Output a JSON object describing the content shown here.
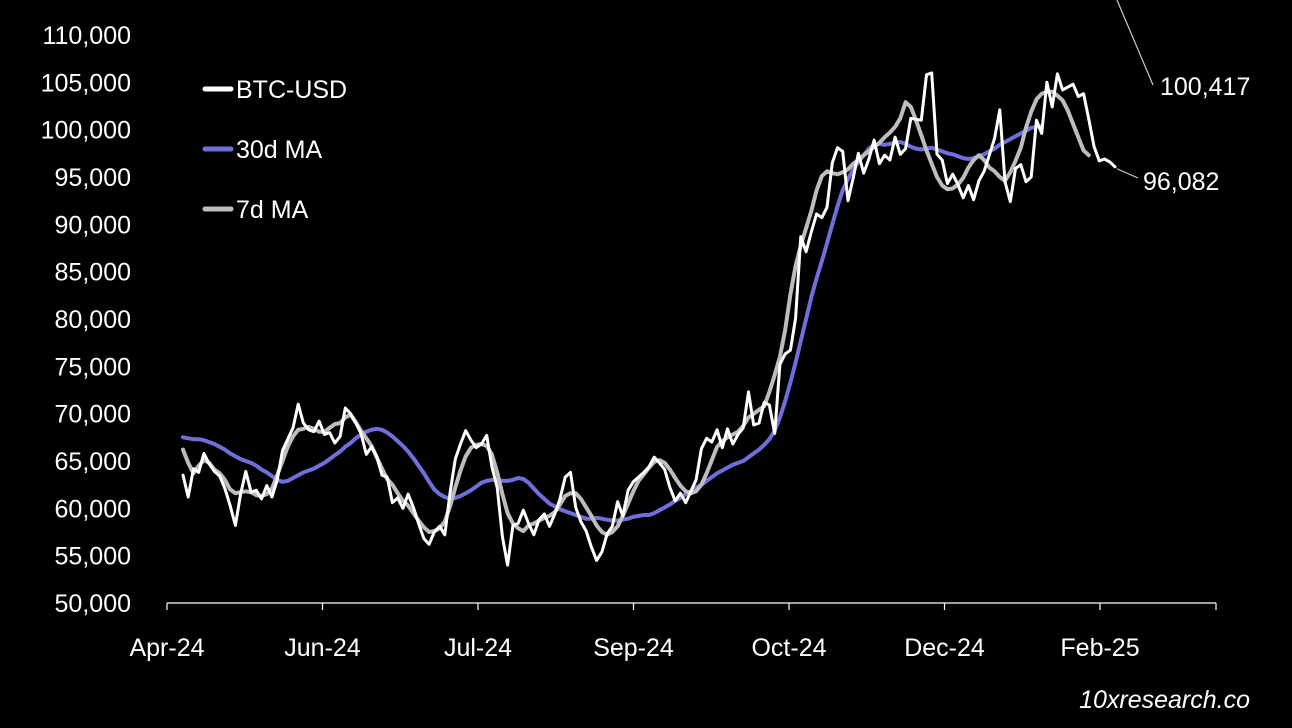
{
  "chart_data": {
    "type": "line",
    "title": "",
    "xlabel": "",
    "ylabel": "",
    "ylim": [
      50000,
      110000
    ],
    "y_ticks": [
      "110,000",
      "105,000",
      "100,000",
      "95,000",
      "90,000",
      "85,000",
      "80,000",
      "75,000",
      "70,000",
      "65,000",
      "60,000",
      "55,000",
      "50,000"
    ],
    "x_ticks": [
      "Apr-24",
      "Jun-24",
      "Jul-24",
      "Sep-24",
      "Oct-24",
      "Dec-24",
      "Feb-25"
    ],
    "grid": false,
    "legend_position": "top-left",
    "colors": {
      "background": "#000000",
      "btc": "#ffffff",
      "ma30": "#6f6fdc",
      "ma7": "#bdbdbd",
      "axis": "#ffffff"
    },
    "annotations": [
      {
        "text": "100,417",
        "series": "30d MA"
      },
      {
        "text": "96,082",
        "series": "BTC-USD"
      }
    ],
    "watermark": "10xresearch.co",
    "series": [
      {
        "name": "BTC-USD",
        "key": "btc",
        "values": [
          63500,
          61200,
          64200,
          63800,
          65800,
          64700,
          63900,
          63400,
          62100,
          60300,
          58200,
          61500,
          63900,
          61700,
          61900,
          61000,
          62400,
          61200,
          63000,
          66100,
          67300,
          68500,
          71000,
          69000,
          68300,
          68100,
          69200,
          67800,
          68000,
          66900,
          67600,
          70600,
          70000,
          69000,
          67900,
          65700,
          66500,
          65500,
          63500,
          63300,
          60600,
          61100,
          60000,
          61500,
          60100,
          58400,
          56800,
          56200,
          57500,
          58100,
          57200,
          61600,
          65200,
          66800,
          68200,
          67200,
          66400,
          66800,
          67700,
          64400,
          62200,
          57000,
          54000,
          58200,
          58400,
          59800,
          58400,
          57200,
          58800,
          59400,
          58100,
          59400,
          61000,
          63300,
          63800,
          60100,
          58600,
          57600,
          55900,
          54500,
          55400,
          57300,
          58100,
          60700,
          59200,
          61900,
          62800,
          63300,
          63800,
          64400,
          65400,
          64800,
          64100,
          62200,
          60800,
          61600,
          60600,
          61800,
          63000,
          66300,
          67400,
          67000,
          68300,
          66400,
          68400,
          66800,
          67800,
          68500,
          72300,
          68800,
          69000,
          71200,
          70900,
          67900,
          75200,
          76300,
          76700,
          80100,
          88700,
          87100,
          89200,
          91100,
          90700,
          91800,
          96500,
          98100,
          97700,
          92500,
          94900,
          97500,
          95400,
          96900,
          98900,
          96400,
          97300,
          96800,
          99200,
          97400,
          98000,
          101200,
          101100,
          101000,
          105800,
          106000,
          97400,
          96800,
          94300,
          95300,
          94200,
          92800,
          94100,
          92600,
          94600,
          95600,
          97300,
          99100,
          102100,
          94500,
          92400,
          95900,
          96300,
          94500,
          95000,
          101000,
          99600,
          105000,
          102400,
          105900,
          104200,
          104500,
          104800,
          103500,
          103800,
          101100,
          98200,
          96700,
          96900,
          96600,
          96082
        ]
      },
      {
        "name": "7d MA",
        "key": "ma7",
        "values": [
          66200,
          64800,
          63700,
          64500,
          65100,
          64800,
          64100,
          63700,
          63000,
          62000,
          61600,
          61700,
          61800,
          61700,
          61400,
          61300,
          61500,
          62100,
          63500,
          65000,
          66500,
          67600,
          68300,
          68400,
          68600,
          68400,
          68100,
          68100,
          68500,
          68900,
          69000,
          69600,
          69900,
          69100,
          68200,
          67400,
          66600,
          65400,
          64200,
          63100,
          62500,
          61600,
          60800,
          60300,
          59500,
          58700,
          58000,
          57500,
          57600,
          57900,
          58600,
          60200,
          62200,
          64000,
          65500,
          66400,
          66700,
          66800,
          66600,
          65700,
          63800,
          61500,
          59500,
          58400,
          57900,
          57600,
          58200,
          58400,
          58700,
          59000,
          59200,
          59600,
          60400,
          61300,
          61600,
          61600,
          61000,
          60100,
          59200,
          58200,
          57500,
          57200,
          57500,
          58100,
          59200,
          60500,
          61800,
          62900,
          63600,
          64300,
          64900,
          65100,
          64800,
          64100,
          63200,
          62400,
          61800,
          61600,
          61800,
          62500,
          63700,
          65100,
          66500,
          67100,
          67500,
          67800,
          68100,
          68700,
          69600,
          70000,
          70400,
          70800,
          72300,
          74100,
          76000,
          78800,
          82600,
          85600,
          87800,
          89600,
          91400,
          93600,
          95100,
          95600,
          95400,
          95300,
          95500,
          95800,
          96400,
          96800,
          97300,
          97700,
          98200,
          98600,
          99200,
          99700,
          100300,
          101200,
          102900,
          102400,
          101000,
          99400,
          97800,
          96400,
          95000,
          94100,
          93700,
          93800,
          94200,
          94900,
          96000,
          96800,
          97300,
          96800,
          96000,
          95600,
          95000,
          94600,
          95500,
          96700,
          98100,
          100200,
          101900,
          103200,
          103800,
          104000,
          104000,
          103600,
          103100,
          102000,
          100600,
          99200,
          97800,
          97300
        ]
      },
      {
        "name": "30d MA",
        "key": "ma30",
        "values": [
          67500,
          67400,
          67300,
          67300,
          67200,
          67000,
          66800,
          66500,
          66200,
          65800,
          65500,
          65200,
          65000,
          64800,
          64500,
          64100,
          63800,
          63400,
          63000,
          62800,
          62900,
          63200,
          63500,
          63800,
          64000,
          64200,
          64500,
          64800,
          65200,
          65600,
          66000,
          66500,
          66900,
          67400,
          67800,
          68100,
          68300,
          68400,
          68300,
          68000,
          67600,
          67100,
          66600,
          66000,
          65300,
          64500,
          63700,
          62800,
          62000,
          61500,
          61200,
          61000,
          61100,
          61300,
          61600,
          61900,
          62300,
          62700,
          62900,
          63000,
          63000,
          62900,
          62900,
          63000,
          63200,
          63100,
          62700,
          62100,
          61500,
          61000,
          60500,
          60200,
          59900,
          59700,
          59500,
          59300,
          59100,
          58900,
          58900,
          59000,
          58900,
          58800,
          58700,
          58700,
          58800,
          58900,
          59100,
          59200,
          59300,
          59300,
          59500,
          59800,
          60100,
          60400,
          60800,
          61100,
          61500,
          61800,
          62200,
          62500,
          62900,
          63300,
          63700,
          64000,
          64300,
          64600,
          64800,
          65000,
          65400,
          65800,
          66200,
          66700,
          67300,
          68200,
          69600,
          71300,
          73300,
          75400,
          77700,
          80000,
          82300,
          84300,
          86100,
          88000,
          90000,
          91900,
          93600,
          94800,
          95800,
          96600,
          97300,
          98000,
          98400,
          98500,
          98400,
          98500,
          98600,
          98700,
          98500,
          98200,
          98000,
          97900,
          98000,
          98100,
          97900,
          97700,
          97500,
          97400,
          97200,
          97000,
          96900,
          97000,
          97200,
          97400,
          97700,
          98000,
          98400,
          98700,
          99000,
          99300,
          99600,
          99900,
          100200,
          100300,
          100417
        ]
      }
    ]
  }
}
